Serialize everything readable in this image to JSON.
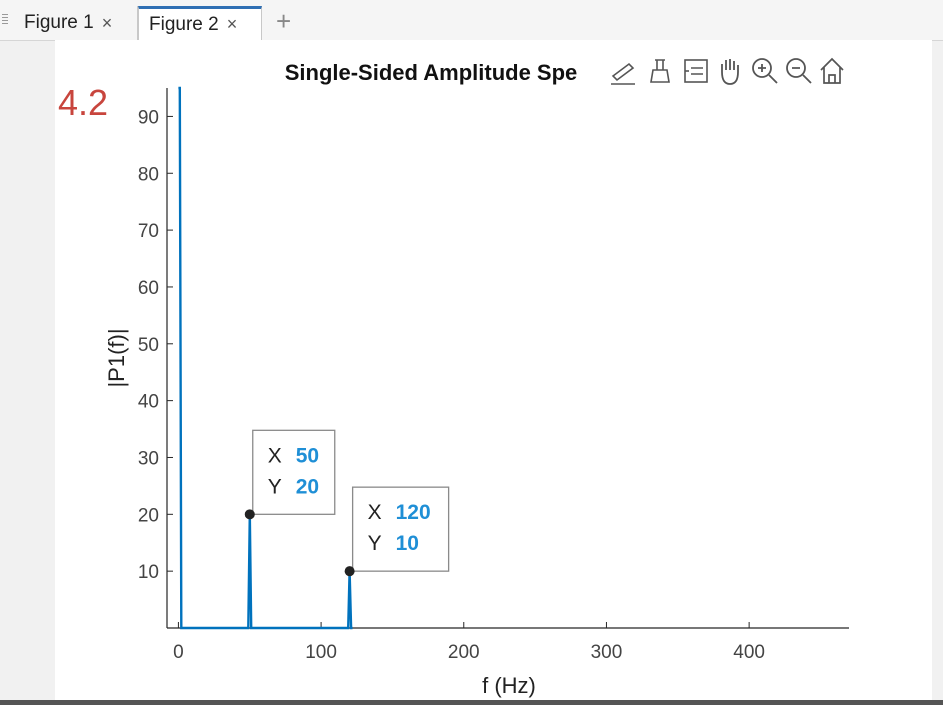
{
  "tabs": [
    {
      "label": "Figure 1",
      "active": false
    },
    {
      "label": "Figure 2",
      "active": true
    }
  ],
  "close_glyph": "×",
  "add_tab_glyph": "+",
  "annotation": {
    "text": "4.2",
    "color": "#c8453d"
  },
  "axes_toolbar": [
    "edit-plot-icon",
    "export-icon",
    "data-tips-icon",
    "pan-icon",
    "zoom-in-icon",
    "zoom-out-icon",
    "home-icon"
  ],
  "chart_data": {
    "type": "line",
    "title": "Single-Sided Amplitude Spe",
    "xlabel": "f (Hz)",
    "ylabel": "|P1(f)|",
    "xlim": [
      -8,
      470
    ],
    "ylim": [
      0,
      95
    ],
    "xticks": [
      0,
      100,
      200,
      300,
      400
    ],
    "yticks": [
      10,
      20,
      30,
      40,
      50,
      60,
      70,
      80,
      90
    ],
    "grid": false,
    "line_color": "#0072bd",
    "series": [
      {
        "x": [
          0,
          0,
          1,
          2,
          3,
          48,
          49,
          50,
          51,
          52,
          118,
          119,
          120,
          121,
          122
        ],
        "y": [
          95,
          95,
          95,
          0,
          0,
          0,
          0,
          20,
          0,
          0,
          0,
          0,
          10,
          0,
          0
        ]
      }
    ],
    "datatips": [
      {
        "x_label": "X",
        "x_value": "50",
        "y_label": "Y",
        "y_value": "20",
        "x": 50,
        "y": 20
      },
      {
        "x_label": "X",
        "x_value": "120",
        "y_label": "Y",
        "y_value": "10",
        "x": 120,
        "y": 10
      }
    ]
  }
}
